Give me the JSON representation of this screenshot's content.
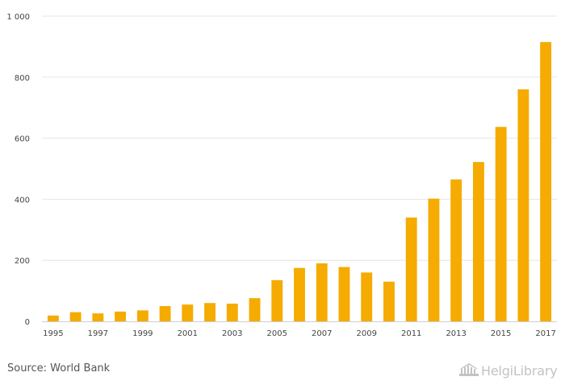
{
  "chart_data": {
    "type": "bar",
    "title": "",
    "xlabel": "",
    "ylabel": "",
    "ylim": [
      0,
      1000
    ],
    "yticks": [
      0,
      200,
      400,
      600,
      800,
      1000
    ],
    "ytick_labels": [
      "0",
      "200",
      "400",
      "600",
      "800",
      "1 000"
    ],
    "grid": true,
    "bar_color": "#f5ab00",
    "categories": [
      "1995",
      "1996",
      "1997",
      "1998",
      "1999",
      "2000",
      "2001",
      "2002",
      "2003",
      "2004",
      "2005",
      "2006",
      "2007",
      "2008",
      "2009",
      "2010",
      "2011",
      "2012",
      "2013",
      "2014",
      "2015",
      "2016",
      "2017"
    ],
    "values": [
      19,
      30,
      26,
      32,
      36,
      50,
      55,
      60,
      58,
      76,
      135,
      175,
      190,
      178,
      160,
      130,
      340,
      402,
      465,
      522,
      637,
      760,
      915
    ],
    "xtick_labels": [
      "1995",
      "",
      "1997",
      "",
      "1999",
      "",
      "2001",
      "",
      "2003",
      "",
      "2005",
      "",
      "2007",
      "",
      "2009",
      "",
      "2011",
      "",
      "2013",
      "",
      "2015",
      "",
      "2017"
    ]
  },
  "footer": {
    "source": "Source: World Bank",
    "logo_text": "HelgiLibrary",
    "logo_icon": "helgi-library-logo-icon"
  }
}
